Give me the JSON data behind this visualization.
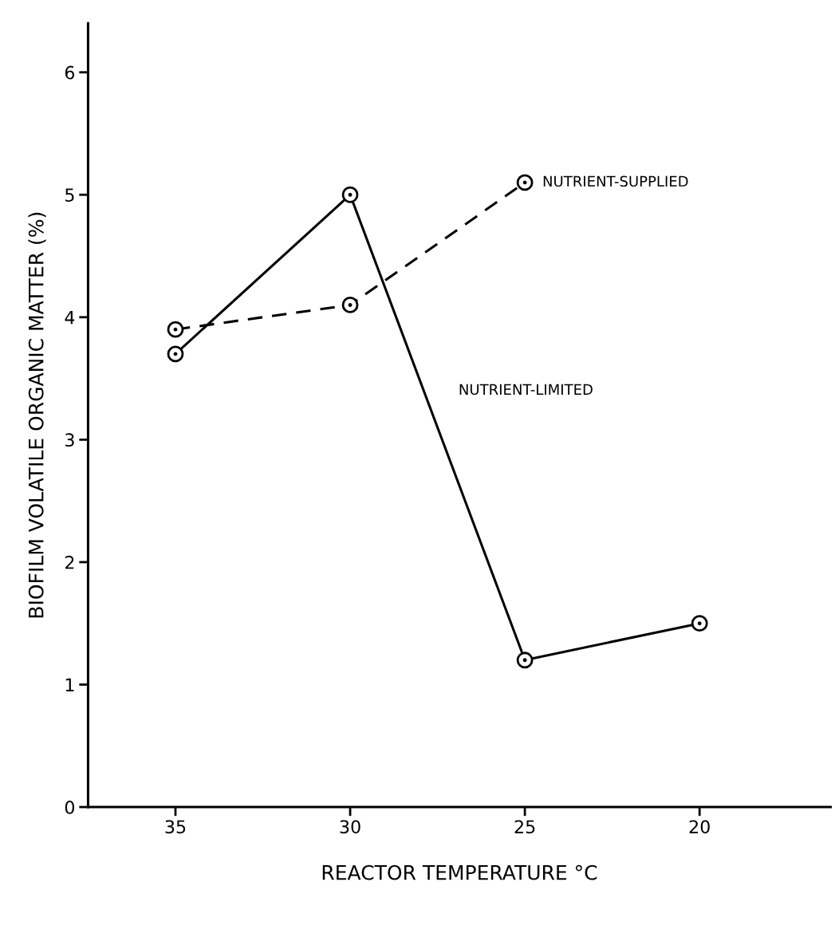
{
  "chart_data": {
    "type": "line",
    "xlabel": "REACTOR TEMPERATURE °C",
    "ylabel": "BIOFILM VOLATILE ORGANIC MATTER (%)",
    "categories": [
      "35",
      "30",
      "25",
      "20"
    ],
    "series": [
      {
        "name": "NUTRIENT-SUPPLIED",
        "color": "#000000",
        "line_style": "dashed",
        "values": [
          3.9,
          4.1,
          5.1,
          null
        ]
      },
      {
        "name": "NUTRIENT-LIMITED",
        "color": "#000000",
        "line_style": "solid",
        "values": [
          3.7,
          5.0,
          1.2,
          1.5
        ]
      }
    ],
    "ylim": [
      0,
      6.4
    ],
    "yticks": [
      0,
      1,
      2,
      3,
      4,
      5,
      6
    ],
    "marker": "circle",
    "grid": false,
    "legend": false
  }
}
